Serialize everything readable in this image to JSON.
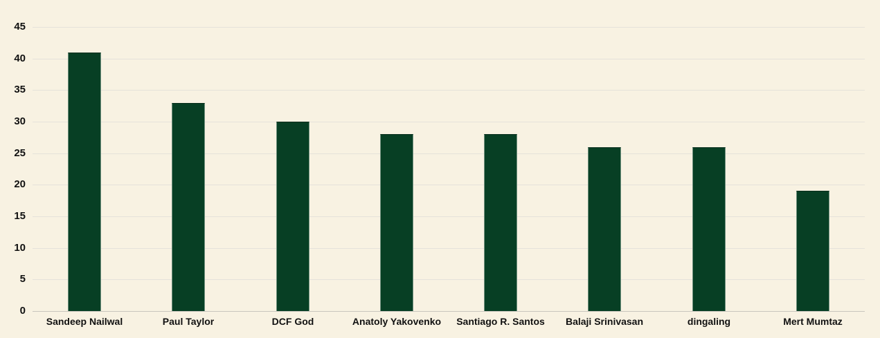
{
  "chart_data": {
    "type": "bar",
    "title": "",
    "xlabel": "",
    "ylabel": "",
    "categories": [
      "Sandeep Nailwal",
      "Paul Taylor",
      "DCF God",
      "Anatoly Yakovenko",
      "Santiago R. Santos",
      "Balaji Srinivasan",
      "dingaling",
      "Mert Mumtaz"
    ],
    "values": [
      41,
      33,
      30,
      28,
      28,
      26,
      26,
      19
    ],
    "ylim": [
      0,
      45
    ],
    "ytick_step": 5,
    "ytick_labels": [
      "0",
      "5",
      "10",
      "15",
      "20",
      "25",
      "30",
      "35",
      "40",
      "45"
    ],
    "grid": true,
    "legend": false,
    "colors": {
      "background": "#f8f2e2",
      "bar": "#073f24",
      "gridline": "#e5e2da",
      "zero_line": "#c8c5bd",
      "label_text": "#111111"
    }
  }
}
